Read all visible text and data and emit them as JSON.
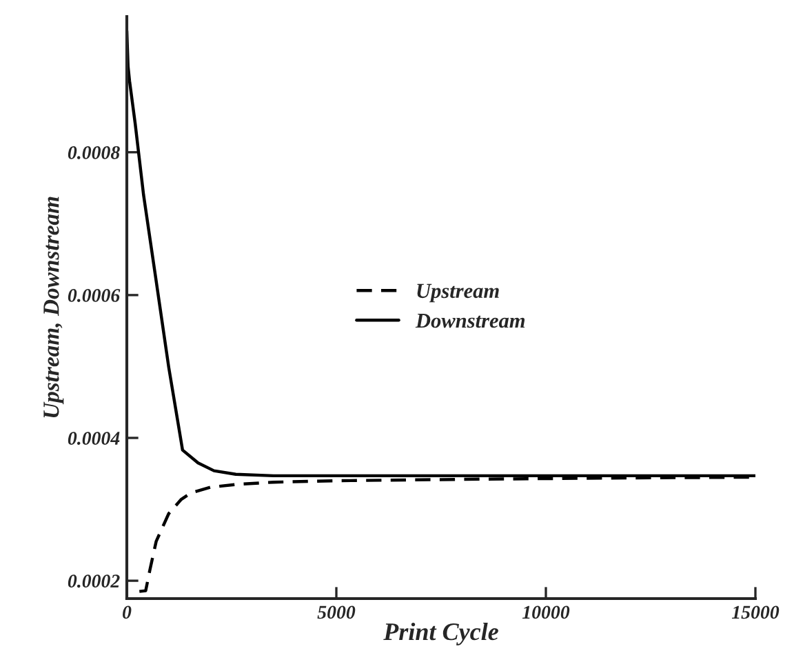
{
  "chart_data": {
    "type": "line",
    "xlabel": "Print Cycle",
    "ylabel": "Upstream, Downstream",
    "xlim": [
      0,
      15000
    ],
    "ylim": [
      0.000175,
      0.00099
    ],
    "xticks": [
      0,
      5000,
      10000,
      15000
    ],
    "yticks": [
      0.0002,
      0.0004,
      0.0006,
      0.0008
    ],
    "legend": "center",
    "grid": false,
    "series": [
      {
        "name": "Upstream",
        "color": "#000000",
        "line_style": "dashed",
        "x": [
          300,
          450,
          550,
          700,
          1000,
          1300,
          1530,
          2000,
          2630,
          3500,
          5000,
          8000,
          12000,
          15000
        ],
        "values": [
          0.000185,
          0.000186,
          0.000215,
          0.000255,
          0.000294,
          0.000314,
          0.000323,
          0.000331,
          0.000335,
          0.000338,
          0.00034,
          0.000342,
          0.000344,
          0.000345
        ]
      },
      {
        "name": "Downstream",
        "color": "#000000",
        "line_style": "solid",
        "x": [
          0,
          30,
          65,
          200,
          400,
          680,
          1000,
          1330,
          1700,
          2080,
          2600,
          3500,
          5000,
          8000,
          12000,
          15000
        ],
        "values": [
          0.00097,
          0.00092,
          0.0009,
          0.00084,
          0.00074,
          0.000628,
          0.000499,
          0.000383,
          0.000365,
          0.000354,
          0.000349,
          0.000347,
          0.000347,
          0.000347,
          0.000347,
          0.000347
        ]
      }
    ]
  }
}
